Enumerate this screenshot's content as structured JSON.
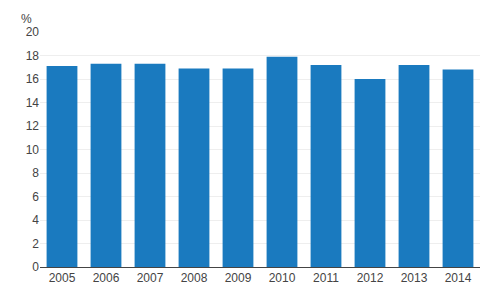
{
  "chart_data": {
    "type": "bar",
    "categories": [
      "2005",
      "2006",
      "2007",
      "2008",
      "2009",
      "2010",
      "2011",
      "2012",
      "2013",
      "2014"
    ],
    "values": [
      17.1,
      17.3,
      17.3,
      16.9,
      16.9,
      17.9,
      17.2,
      16.0,
      17.2,
      16.8
    ],
    "color": "#1a7abf",
    "ylabel": "%",
    "ylim": [
      0,
      20
    ],
    "yticks": [
      0,
      2,
      4,
      6,
      8,
      10,
      12,
      14,
      16,
      18,
      20
    ],
    "grid": true
  }
}
